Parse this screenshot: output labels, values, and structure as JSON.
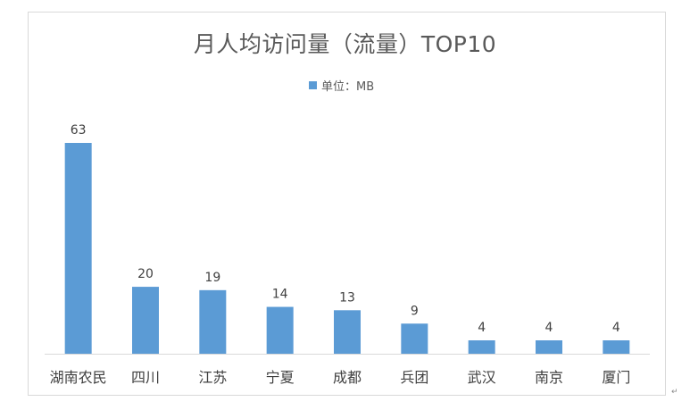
{
  "chart_data": {
    "type": "bar",
    "title": "月人均访问量（流量）TOP10",
    "legend": {
      "label": "单位：MB",
      "position": "top"
    },
    "categories": [
      "湖南农民",
      "四川",
      "江苏",
      "宁夏",
      "成都",
      "兵团",
      "武汉",
      "南京",
      "厦门"
    ],
    "series": [
      {
        "name": "单位：MB",
        "values": [
          63,
          20,
          19,
          14,
          13,
          9,
          4,
          4,
          4
        ]
      }
    ],
    "data_labels": [
      "63",
      "20",
      "19",
      "14",
      "13",
      "9",
      "4",
      "4",
      "4"
    ],
    "ylim": [
      0,
      63
    ],
    "grid": false,
    "colors": {
      "bar": "#5b9bd5",
      "axis": "#d9d9d9",
      "text": "#595959"
    }
  },
  "paragraph_mark": "↵"
}
